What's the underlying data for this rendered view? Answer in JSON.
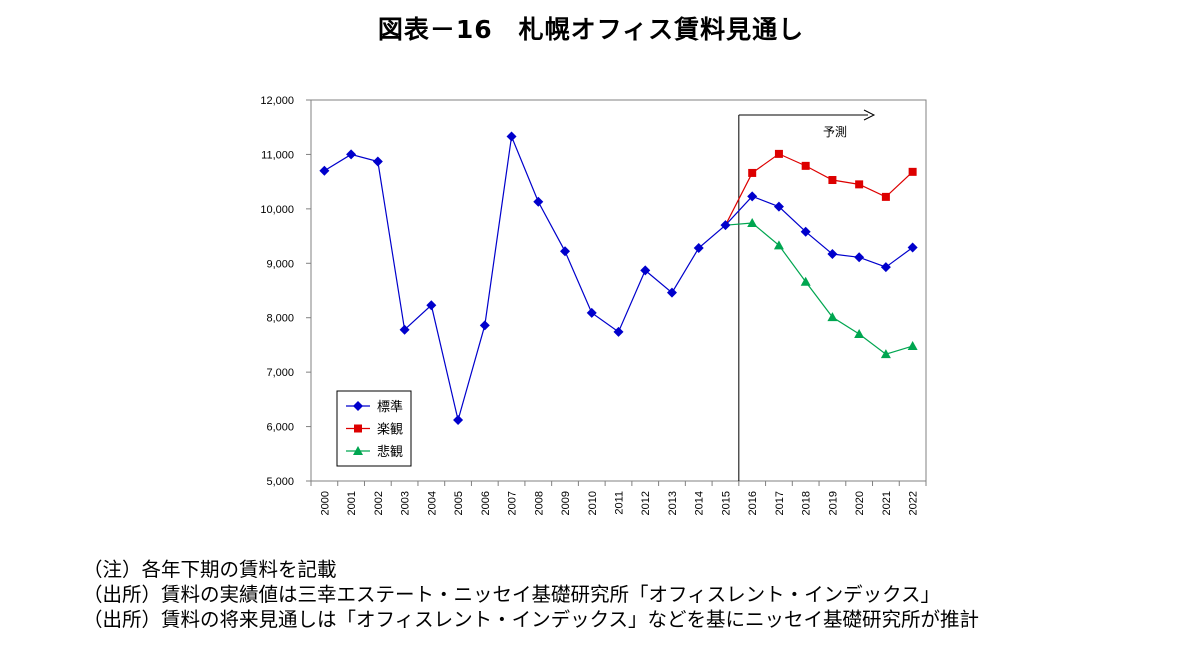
{
  "title": "図表－16　札幌オフィス賃料見通し",
  "chart_data": {
    "type": "line",
    "x": [
      "2000",
      "2001",
      "2002",
      "2003",
      "2004",
      "2005",
      "2006",
      "2007",
      "2008",
      "2009",
      "2010",
      "2011",
      "2012",
      "2013",
      "2014",
      "2015",
      "2016",
      "2017",
      "2018",
      "2019",
      "2020",
      "2021",
      "2022"
    ],
    "ylim": [
      5000,
      12000
    ],
    "y_ticks": [
      5000,
      6000,
      7000,
      8000,
      9000,
      10000,
      11000,
      12000
    ],
    "y_tick_labels": [
      "5,000",
      "6,000",
      "7,000",
      "8,000",
      "9,000",
      "10,000",
      "11,000",
      "12,000"
    ],
    "grid": false,
    "legend_position": "bottom-left",
    "annotation": "予測",
    "forecast_start": "2015",
    "series": [
      {
        "name": "標準",
        "color": "#0000cc",
        "marker": "diamond",
        "values": [
          10700,
          11000,
          10870,
          7780,
          8230,
          6120,
          7860,
          11330,
          10130,
          9220,
          8090,
          7740,
          8870,
          8460,
          9280,
          9700,
          10230,
          10040,
          9580,
          9170,
          9110,
          8930,
          9290
        ]
      },
      {
        "name": "楽観",
        "color": "#dd0000",
        "marker": "square",
        "values": [
          null,
          null,
          null,
          null,
          null,
          null,
          null,
          null,
          null,
          null,
          null,
          null,
          null,
          null,
          null,
          9700,
          10660,
          11010,
          10790,
          10530,
          10450,
          10220,
          10680
        ]
      },
      {
        "name": "悲観",
        "color": "#00a650",
        "marker": "triangle",
        "values": [
          null,
          null,
          null,
          null,
          null,
          null,
          null,
          null,
          null,
          null,
          null,
          null,
          null,
          null,
          null,
          9700,
          9740,
          9330,
          8660,
          8010,
          7700,
          7330,
          7480
        ]
      }
    ]
  },
  "notes": [
    "（注）各年下期の賃料を記載",
    "（出所）賃料の実績値は三幸エステート・ニッセイ基礎研究所「オフィスレント・インデックス」",
    "（出所）賃料の将来見通しは「オフィスレント・インデックス」などを基にニッセイ基礎研究所が推計"
  ]
}
